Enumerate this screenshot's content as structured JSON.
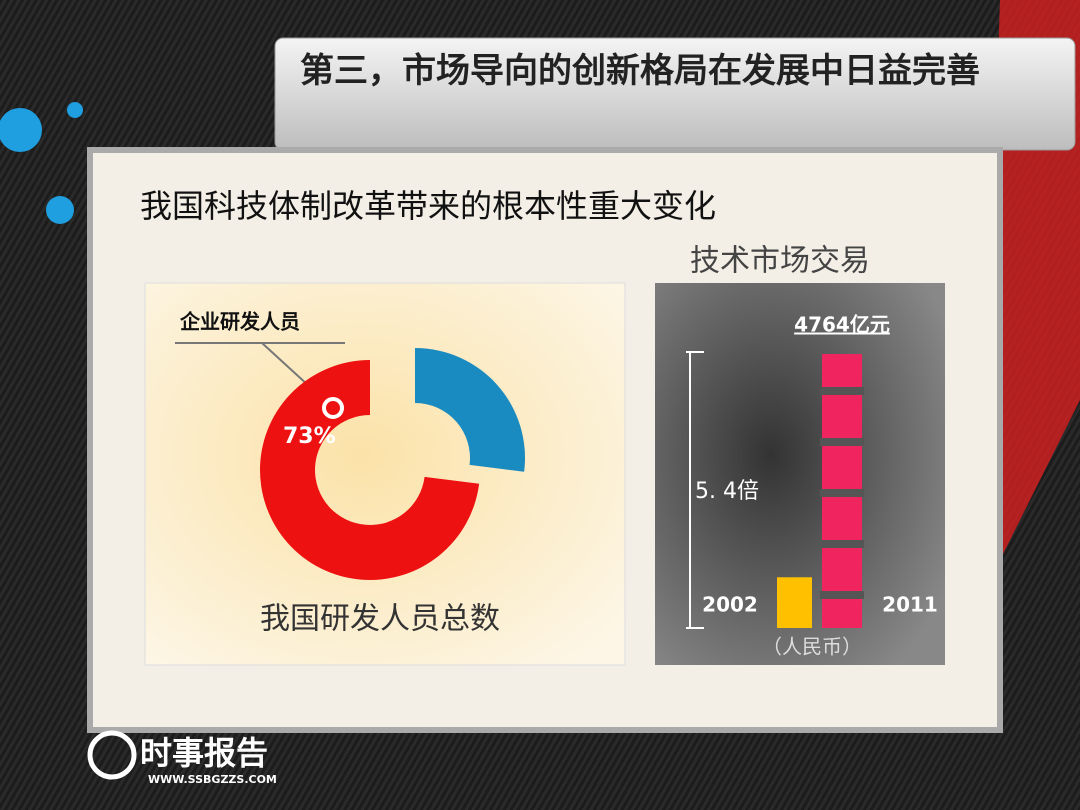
{
  "header": {
    "title": "第三，市场导向的创新格局在发展中日益完善"
  },
  "subtitle": "我国科技体制改革带来的根本性重大变化",
  "chart_data": [
    {
      "type": "donut",
      "title": "我国研发人员总数",
      "categories": [
        "企业研发人员",
        null
      ],
      "values": [
        73,
        27
      ],
      "value_labels": [
        "73%",
        null
      ],
      "colors": [
        "#ee1111",
        "#1a8bc0"
      ]
    },
    {
      "type": "bar",
      "title": "技术市场交易",
      "categories": [
        "2002",
        "2011"
      ],
      "values": [
        882,
        4764
      ],
      "value_labels": [
        null,
        "4764亿元"
      ],
      "colors": [
        "#ffc000",
        "#f0245e"
      ],
      "annotations": [
        "5. 4倍",
        "（人民币）"
      ]
    }
  ],
  "logo": {
    "name": "时事报告",
    "url": "WWW.SSBGZZS.COM"
  }
}
